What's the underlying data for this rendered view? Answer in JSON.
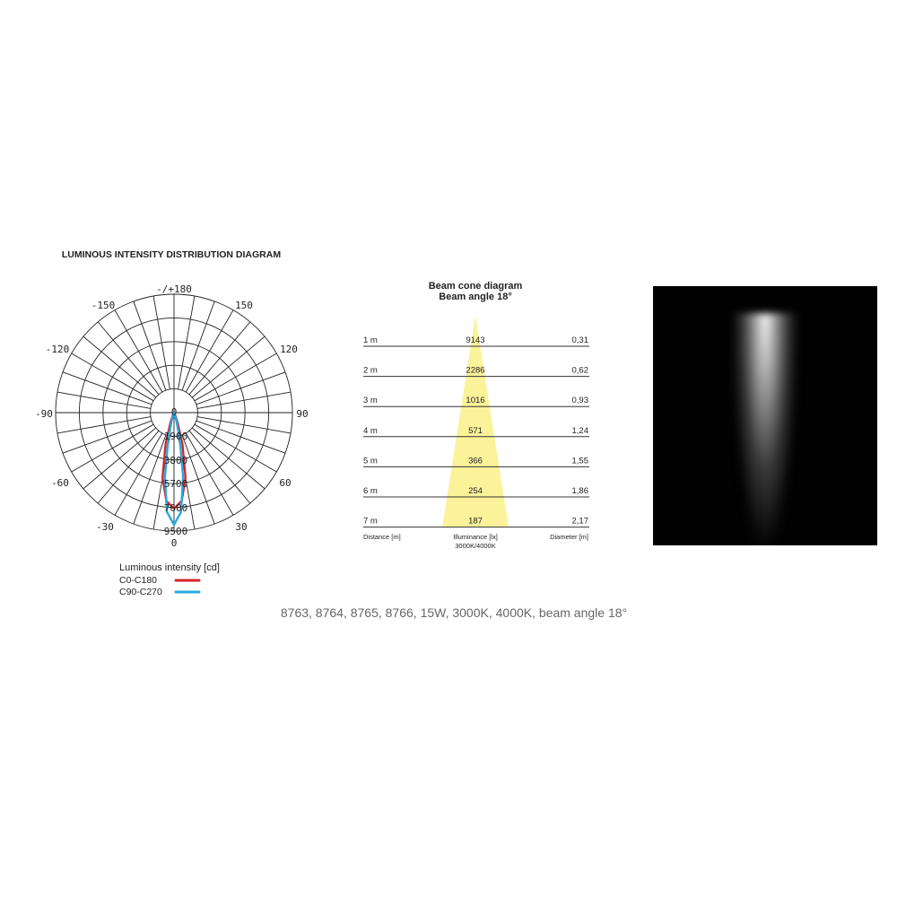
{
  "polar": {
    "title": "LUMINOUS INTENSITY DISTRIBUTION DIAGRAM",
    "angle_labels": {
      "top": "-/+180",
      "p150": "150",
      "m150": "-150",
      "p120": "120",
      "m120": "-120",
      "p90": "90",
      "m90": "-90",
      "p60": "60",
      "m60": "-60",
      "p30": "30",
      "m30": "-30",
      "bottom": "0"
    },
    "center_label": "0",
    "ring_labels": [
      "1900",
      "3800",
      "5700",
      "7600",
      "9500"
    ],
    "legend_title": "Luminous intensity [cd]",
    "series": [
      {
        "name": "C0-C180",
        "color": "#d7262b",
        "points": [
          [
            0,
            7700
          ],
          [
            5,
            7100
          ],
          [
            10,
            5300
          ],
          [
            15,
            2600
          ],
          [
            20,
            800
          ],
          [
            25,
            200
          ],
          [
            30,
            0
          ]
        ]
      },
      {
        "name": "C90-C270",
        "color": "#27a9e1",
        "points": [
          [
            0,
            9000
          ],
          [
            4,
            8000
          ],
          [
            8,
            5200
          ],
          [
            12,
            2300
          ],
          [
            16,
            700
          ],
          [
            20,
            150
          ],
          [
            24,
            0
          ]
        ]
      }
    ]
  },
  "beam_cone": {
    "title": "Beam cone diagram",
    "subtitle": "Beam angle 18°",
    "rows": [
      {
        "distance": "1 m",
        "illuminance": "9143",
        "diameter": "0,31"
      },
      {
        "distance": "2 m",
        "illuminance": "2286",
        "diameter": "0,62"
      },
      {
        "distance": "3 m",
        "illuminance": "1016",
        "diameter": "0,93"
      },
      {
        "distance": "4 m",
        "illuminance": "571",
        "diameter": "1,24"
      },
      {
        "distance": "5 m",
        "illuminance": "366",
        "diameter": "1,55"
      },
      {
        "distance": "6 m",
        "illuminance": "254",
        "diameter": "1,86"
      },
      {
        "distance": "7 m",
        "illuminance": "187",
        "diameter": "2,17"
      }
    ],
    "col_distance": "Distance [m]",
    "col_illuminance": "Illuminance [lx]",
    "col_illuminance_sub": "3000K/4000K",
    "col_diameter": "Diameter [m]",
    "cone_color": "#fbf29a"
  },
  "caption": "8763, 8764, 8765, 8766, 15W, 3000K, 4000K, beam angle 18°"
}
